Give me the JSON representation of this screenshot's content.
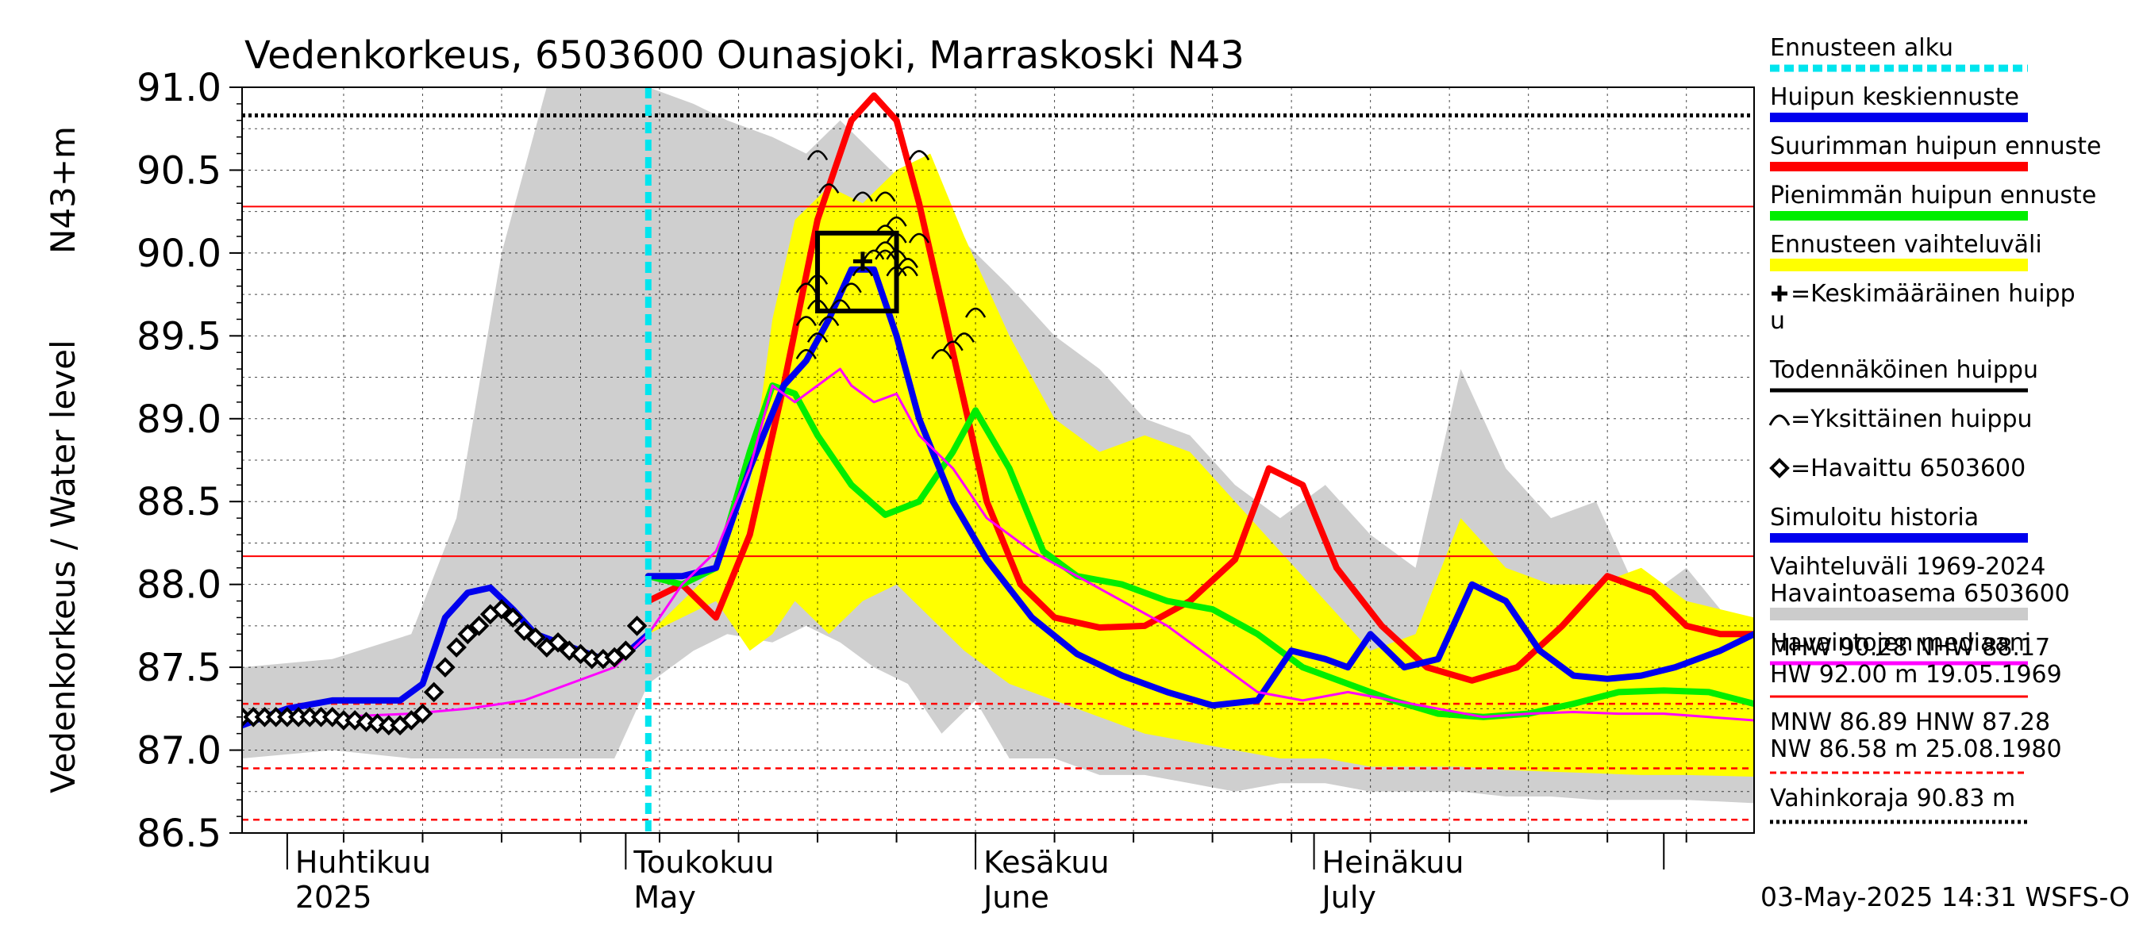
{
  "chart_data": {
    "type": "line",
    "title": "Vedenkorkeus, 6503600 Ounasjoki, Marraskoski N43",
    "ylabel": "Vedenkorkeus / Water level",
    "ylabel_unit": "N43+m",
    "ylim": [
      86.5,
      91.0
    ],
    "yticks": [
      "86.5",
      "87.0",
      "87.5",
      "88.0",
      "88.5",
      "89.0",
      "89.5",
      "90.0",
      "90.5",
      "91.0"
    ],
    "xlim": [
      "2025-03-28",
      "2025-08-09"
    ],
    "x_month_labels": [
      {
        "date": "2025-04-01",
        "fi": "Huhtikuu",
        "en": "2025"
      },
      {
        "date": "2025-05-01",
        "fi": "Toukokuu",
        "en": "May"
      },
      {
        "date": "2025-06-01",
        "fi": "Kesäkuu",
        "en": "June"
      },
      {
        "date": "2025-07-01",
        "fi": "Heinäkuu",
        "en": "July"
      }
    ],
    "grid": true,
    "legend_position": "right",
    "forecast_start": "2025-05-03",
    "reference_lines": [
      {
        "name": "MHW",
        "value": 90.28,
        "style": "solid",
        "color": "#ff0000"
      },
      {
        "name": "NHW",
        "value": 88.17,
        "style": "solid",
        "color": "#ff0000"
      },
      {
        "name": "HNW",
        "value": 87.28,
        "style": "dashed",
        "color": "#ff0000"
      },
      {
        "name": "MNW",
        "value": 86.89,
        "style": "dashed",
        "color": "#ff0000"
      },
      {
        "name": "NW",
        "value": 86.58,
        "style": "dashed",
        "color": "#ff0000"
      },
      {
        "name": "Vahinkoraja",
        "value": 90.83,
        "style": "dotted",
        "color": "#000000"
      }
    ],
    "historical_range": {
      "x": [
        "2025-03-28",
        "2025-04-05",
        "2025-04-12",
        "2025-04-16",
        "2025-04-20",
        "2025-04-24",
        "2025-04-27",
        "2025-04-30",
        "2025-05-03",
        "2025-05-07",
        "2025-05-10",
        "2025-05-14",
        "2025-05-17",
        "2025-05-20",
        "2025-05-23",
        "2025-05-26",
        "2025-05-29",
        "2025-06-01",
        "2025-06-04",
        "2025-06-08",
        "2025-06-12",
        "2025-06-16",
        "2025-06-20",
        "2025-06-24",
        "2025-06-28",
        "2025-07-02",
        "2025-07-06",
        "2025-07-10",
        "2025-07-14",
        "2025-07-18",
        "2025-07-22",
        "2025-07-26",
        "2025-07-30",
        "2025-08-03",
        "2025-08-09"
      ],
      "upper": [
        87.5,
        87.55,
        87.7,
        88.4,
        90.0,
        91.0,
        91.0,
        91.0,
        91.0,
        90.9,
        90.8,
        90.7,
        90.6,
        90.8,
        90.6,
        90.4,
        90.2,
        90.0,
        89.8,
        89.5,
        89.3,
        89.0,
        88.9,
        88.6,
        88.4,
        88.6,
        88.3,
        88.1,
        89.3,
        88.7,
        88.4,
        88.5,
        87.9,
        88.1,
        87.6
      ],
      "lower": [
        86.95,
        87.0,
        86.95,
        86.95,
        86.95,
        86.95,
        86.95,
        86.95,
        87.4,
        87.6,
        87.7,
        87.65,
        87.75,
        87.65,
        87.5,
        87.4,
        87.1,
        87.3,
        86.95,
        86.95,
        86.85,
        86.85,
        86.8,
        86.75,
        86.8,
        86.8,
        86.75,
        86.75,
        86.75,
        86.72,
        86.72,
        86.7,
        86.7,
        86.7,
        86.68
      ]
    },
    "forecast_range": {
      "x": [
        "2025-05-03",
        "2025-05-06",
        "2025-05-09",
        "2025-05-12",
        "2025-05-14",
        "2025-05-16",
        "2025-05-19",
        "2025-05-22",
        "2025-05-25",
        "2025-05-28",
        "2025-05-31",
        "2025-06-04",
        "2025-06-08",
        "2025-06-12",
        "2025-06-16",
        "2025-06-20",
        "2025-06-24",
        "2025-06-28",
        "2025-07-02",
        "2025-07-06",
        "2025-07-10",
        "2025-07-14",
        "2025-07-18",
        "2025-07-22",
        "2025-07-26",
        "2025-07-30",
        "2025-08-03",
        "2025-08-09"
      ],
      "upper": [
        87.7,
        87.9,
        88.1,
        88.6,
        89.6,
        90.2,
        90.4,
        90.3,
        90.5,
        90.6,
        90.1,
        89.5,
        89.0,
        88.8,
        88.9,
        88.8,
        88.5,
        88.2,
        87.9,
        87.6,
        87.7,
        88.4,
        88.1,
        88.0,
        88.0,
        88.1,
        87.9,
        87.8
      ],
      "lower": [
        87.7,
        87.8,
        87.9,
        87.6,
        87.7,
        87.9,
        87.7,
        87.9,
        88.0,
        87.8,
        87.6,
        87.4,
        87.3,
        87.2,
        87.1,
        87.05,
        87.0,
        86.95,
        86.95,
        86.9,
        86.9,
        86.9,
        86.88,
        86.87,
        86.86,
        86.85,
        86.85,
        86.84
      ]
    },
    "series": [
      {
        "name": "Suurimman huipun ennuste",
        "color": "#ff0000",
        "x": [
          "2025-05-03",
          "2025-05-06",
          "2025-05-09",
          "2025-05-12",
          "2025-05-15",
          "2025-05-18",
          "2025-05-21",
          "2025-05-23",
          "2025-05-25",
          "2025-05-27",
          "2025-05-30",
          "2025-06-02",
          "2025-06-05",
          "2025-06-08",
          "2025-06-12",
          "2025-06-16",
          "2025-06-20",
          "2025-06-24",
          "2025-06-27",
          "2025-06-30",
          "2025-07-03",
          "2025-07-07",
          "2025-07-11",
          "2025-07-15",
          "2025-07-19",
          "2025-07-23",
          "2025-07-27",
          "2025-07-31",
          "2025-08-03",
          "2025-08-06",
          "2025-08-09"
        ],
        "y": [
          87.9,
          88.0,
          87.8,
          88.3,
          89.2,
          90.2,
          90.8,
          90.95,
          90.8,
          90.3,
          89.4,
          88.5,
          88.0,
          87.8,
          87.74,
          87.75,
          87.9,
          88.15,
          88.7,
          88.6,
          88.1,
          87.75,
          87.5,
          87.42,
          87.5,
          87.75,
          88.05,
          87.95,
          87.75,
          87.7,
          87.7
        ]
      },
      {
        "name": "Pienimmän huipun ennuste",
        "color": "#00ee00",
        "x": [
          "2025-05-03",
          "2025-05-06",
          "2025-05-09",
          "2025-05-12",
          "2025-05-14",
          "2025-05-16",
          "2025-05-18",
          "2025-05-21",
          "2025-05-24",
          "2025-05-27",
          "2025-05-30",
          "2025-06-01",
          "2025-06-04",
          "2025-06-07",
          "2025-06-10",
          "2025-06-14",
          "2025-06-18",
          "2025-06-22",
          "2025-06-26",
          "2025-06-30",
          "2025-07-04",
          "2025-07-08",
          "2025-07-12",
          "2025-07-16",
          "2025-07-20",
          "2025-07-24",
          "2025-07-28",
          "2025-08-01",
          "2025-08-05",
          "2025-08-09"
        ],
        "y": [
          88.05,
          88.0,
          88.1,
          88.8,
          89.2,
          89.15,
          88.9,
          88.6,
          88.42,
          88.5,
          88.8,
          89.05,
          88.7,
          88.2,
          88.05,
          88.0,
          87.9,
          87.85,
          87.7,
          87.5,
          87.4,
          87.3,
          87.22,
          87.2,
          87.22,
          87.28,
          87.35,
          87.36,
          87.35,
          87.28
        ]
      },
      {
        "name": "Huipun keskiennuste",
        "color": "#0000ee",
        "x": [
          "2025-05-03",
          "2025-05-06",
          "2025-05-09",
          "2025-05-12",
          "2025-05-15",
          "2025-05-17",
          "2025-05-19",
          "2025-05-21",
          "2025-05-23",
          "2025-05-25",
          "2025-05-27",
          "2025-05-30",
          "2025-06-02",
          "2025-06-06",
          "2025-06-10",
          "2025-06-14",
          "2025-06-18",
          "2025-06-22",
          "2025-06-26",
          "2025-06-29",
          "2025-07-02",
          "2025-07-04",
          "2025-07-06",
          "2025-07-09",
          "2025-07-12",
          "2025-07-15",
          "2025-07-18",
          "2025-07-21",
          "2025-07-24",
          "2025-07-27",
          "2025-07-30",
          "2025-08-02",
          "2025-08-06",
          "2025-08-09"
        ],
        "y": [
          88.05,
          88.05,
          88.1,
          88.7,
          89.2,
          89.35,
          89.6,
          89.9,
          89.9,
          89.5,
          89.0,
          88.5,
          88.15,
          87.8,
          87.58,
          87.45,
          87.35,
          87.27,
          87.3,
          87.6,
          87.55,
          87.5,
          87.7,
          87.5,
          87.55,
          88.0,
          87.9,
          87.6,
          87.45,
          87.43,
          87.45,
          87.5,
          87.6,
          87.7
        ]
      },
      {
        "name": "Simuloitu historia",
        "color": "#0000ee",
        "x": [
          "2025-03-28",
          "2025-04-01",
          "2025-04-05",
          "2025-04-08",
          "2025-04-11",
          "2025-04-13",
          "2025-04-15",
          "2025-04-17",
          "2025-04-19",
          "2025-04-21",
          "2025-04-23",
          "2025-04-25",
          "2025-04-27",
          "2025-04-29",
          "2025-05-01",
          "2025-05-03"
        ],
        "y": [
          87.15,
          87.25,
          87.3,
          87.3,
          87.3,
          87.4,
          87.8,
          87.95,
          87.98,
          87.85,
          87.7,
          87.65,
          87.6,
          87.55,
          87.58,
          87.7
        ]
      },
      {
        "name": "Havaintojen mediaani",
        "color": "#ff00ff",
        "x": [
          "2025-03-28",
          "2025-04-05",
          "2025-04-12",
          "2025-04-17",
          "2025-04-22",
          "2025-04-26",
          "2025-04-30",
          "2025-05-03",
          "2025-05-06",
          "2025-05-09",
          "2025-05-12",
          "2025-05-14",
          "2025-05-16",
          "2025-05-18",
          "2025-05-20",
          "2025-05-21",
          "2025-05-23",
          "2025-05-25",
          "2025-05-27",
          "2025-05-30",
          "2025-06-02",
          "2025-06-06",
          "2025-06-10",
          "2025-06-14",
          "2025-06-18",
          "2025-06-22",
          "2025-06-26",
          "2025-06-30",
          "2025-07-04",
          "2025-07-08",
          "2025-07-12",
          "2025-07-16",
          "2025-07-20",
          "2025-07-24",
          "2025-07-28",
          "2025-08-01",
          "2025-08-05",
          "2025-08-09"
        ],
        "y": [
          87.2,
          87.2,
          87.22,
          87.25,
          87.3,
          87.4,
          87.5,
          87.7,
          88.0,
          88.2,
          88.7,
          89.2,
          89.1,
          89.2,
          89.3,
          89.2,
          89.1,
          89.15,
          88.9,
          88.7,
          88.4,
          88.2,
          88.05,
          87.9,
          87.75,
          87.55,
          87.35,
          87.3,
          87.35,
          87.3,
          87.25,
          87.2,
          87.22,
          87.23,
          87.22,
          87.22,
          87.2,
          87.18
        ]
      }
    ],
    "observed": {
      "name": "Havaittu 6503600",
      "x": [
        "2025-03-28",
        "2025-03-29",
        "2025-03-30",
        "2025-03-31",
        "2025-04-01",
        "2025-04-02",
        "2025-04-03",
        "2025-04-04",
        "2025-04-05",
        "2025-04-06",
        "2025-04-07",
        "2025-04-08",
        "2025-04-09",
        "2025-04-10",
        "2025-04-11",
        "2025-04-12",
        "2025-04-13",
        "2025-04-14",
        "2025-04-15",
        "2025-04-16",
        "2025-04-17",
        "2025-04-18",
        "2025-04-19",
        "2025-04-20",
        "2025-04-21",
        "2025-04-22",
        "2025-04-23",
        "2025-04-24",
        "2025-04-25",
        "2025-04-26",
        "2025-04-27",
        "2025-04-28",
        "2025-04-29",
        "2025-04-30",
        "2025-05-01",
        "2025-05-02"
      ],
      "y": [
        87.2,
        87.2,
        87.2,
        87.2,
        87.2,
        87.2,
        87.2,
        87.2,
        87.2,
        87.18,
        87.18,
        87.17,
        87.16,
        87.15,
        87.15,
        87.18,
        87.22,
        87.35,
        87.5,
        87.62,
        87.7,
        87.75,
        87.82,
        87.85,
        87.8,
        87.72,
        87.68,
        87.62,
        87.65,
        87.6,
        87.58,
        87.55,
        87.55,
        87.56,
        87.6,
        87.75
      ]
    },
    "individual_peaks": {
      "name": "Yksittäinen huippu",
      "x": [
        "2025-05-17",
        "2025-05-18",
        "2025-05-19",
        "2025-05-20",
        "2025-05-21",
        "2025-05-22",
        "2025-05-24",
        "2025-05-25",
        "2025-05-25",
        "2025-05-26",
        "2025-05-26",
        "2025-05-27",
        "2025-05-18",
        "2025-05-19",
        "2025-05-22",
        "2025-05-24",
        "2025-05-25",
        "2025-05-27",
        "2025-05-17",
        "2025-05-18",
        "2025-05-24",
        "2025-05-25",
        "2025-05-27",
        "2025-05-29",
        "2025-05-30",
        "2025-05-31",
        "2025-06-01",
        "2025-05-17",
        "2025-05-18",
        "2025-05-23",
        "2025-05-24",
        "2025-05-26"
      ],
      "y": [
        89.4,
        89.5,
        89.6,
        89.7,
        89.8,
        89.9,
        90.0,
        90.0,
        89.9,
        89.95,
        89.9,
        90.6,
        90.6,
        90.4,
        90.35,
        90.35,
        90.2,
        90.1,
        89.6,
        89.7,
        90.15,
        90.1,
        90.6,
        89.4,
        89.45,
        89.5,
        89.65,
        89.8,
        89.85,
        90.0,
        90.05,
        89.95
      ]
    },
    "probable_peak_box": {
      "x1": "2025-05-18",
      "x2": "2025-05-25",
      "y1": 89.65,
      "y2": 90.12
    },
    "mean_peak": {
      "x": "2025-05-22",
      "y": 89.95
    },
    "legend": [
      {
        "label": "Ennusteen alku",
        "color": "#00e5ee",
        "style": "dotted"
      },
      {
        "label": "Huipun keskiennuste",
        "color": "#0000ee",
        "style": "line"
      },
      {
        "label": "Suurimman huipun ennuste",
        "color": "#ff0000",
        "style": "line"
      },
      {
        "label": "Pienimmän huipun ennuste",
        "color": "#00ee00",
        "style": "line"
      },
      {
        "label": "Ennusteen vaihteluväli",
        "color": "#ffff00",
        "style": "band"
      },
      {
        "label": "=Keskimääräinen huipp",
        "label2": "u",
        "color": "#000000",
        "style": "plus"
      },
      {
        "label": "Todennäköinen huippu",
        "color": "#000000",
        "style": "thin"
      },
      {
        "label": "=Yksittäinen huippu",
        "color": "#000000",
        "style": "arc"
      },
      {
        "label": "=Havaittu 6503600",
        "color": "#000000",
        "style": "diamond"
      },
      {
        "label": "Simuloitu historia",
        "color": "#0000ee",
        "style": "line"
      },
      {
        "label": "Vaihteluväli 1969-2024",
        "label2": " Havaintoasema 6503600",
        "color": "#cccccc",
        "style": "band"
      },
      {
        "label": "Havaintojen mediaani",
        "color": "#ff00ff",
        "style": "thin"
      }
    ],
    "stats": {
      "line1": "MHW  90.28 NHW  88.17",
      "line2": "HW  92.00 m 19.05.1969",
      "line3": "MNW  86.89 HNW  87.28",
      "line4": "NW  86.58 m 25.08.1980",
      "damage": "Vahinkoraja 90.83 m"
    },
    "timestamp": "03-May-2025 14:31 WSFS-O"
  }
}
